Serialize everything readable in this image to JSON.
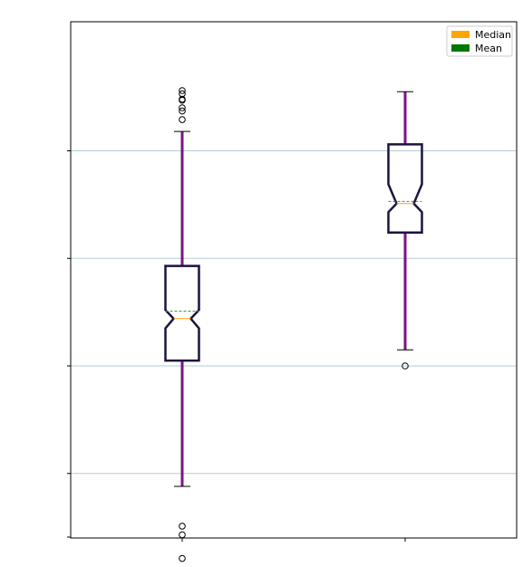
{
  "chart_data": {
    "type": "boxplot",
    "title": "",
    "xlabel": "",
    "ylabel": "",
    "notched": true,
    "grid": {
      "y": true,
      "x": false,
      "color": "#b0cdd6"
    },
    "ylim": [
      0.4,
      5.2
    ],
    "yticks": [
      1,
      2,
      3,
      4
    ],
    "categories": [
      "",
      ""
    ],
    "colors": {
      "box_edge": "#1b1340",
      "whisker": "#7a1585",
      "median": "#ff9f00",
      "mean": "#2ca02c",
      "cap": "#000000",
      "flier_edge": "#000000"
    },
    "legend": {
      "position": "top-right",
      "entries": [
        {
          "label": "Median",
          "color": "#ffa500"
        },
        {
          "label": "Mean",
          "color": "#007700"
        }
      ]
    },
    "series": [
      {
        "q1": 2.05,
        "q3": 2.93,
        "median": 2.44,
        "mean": 2.51,
        "notch_low": 2.35,
        "notch_high": 2.52,
        "whisker_low": 0.88,
        "whisker_high": 4.18,
        "fliers": [
          4.56,
          4.53,
          4.48,
          4.47,
          4.4,
          4.37,
          4.29,
          0.51,
          0.43,
          0.21
        ]
      },
      {
        "q1": 3.24,
        "q3": 4.06,
        "median": 3.51,
        "mean": 3.53,
        "notch_low": 3.43,
        "notch_high": 3.69,
        "whisker_low": 2.15,
        "whisker_high": 4.55,
        "fliers": [
          2.0
        ]
      }
    ]
  }
}
